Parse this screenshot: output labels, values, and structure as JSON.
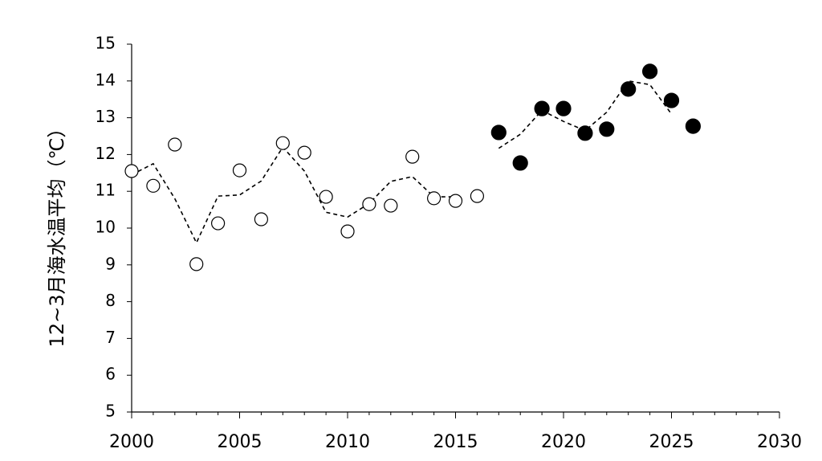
{
  "chart_data": {
    "type": "scatter",
    "y_label": "12~3月海水温平均（℃）",
    "xlim": [
      2000,
      2030
    ],
    "xticks": [
      2000,
      2005,
      2010,
      2015,
      2020,
      2025,
      2030
    ],
    "ylim": [
      5,
      15
    ],
    "yticks": [
      5,
      6,
      7,
      8,
      9,
      10,
      11,
      12,
      13,
      14,
      15
    ],
    "series": [
      {
        "kind": "marker",
        "marker": "open",
        "color": "#000000",
        "x": [
          2000,
          2001,
          2002,
          2003,
          2004,
          2005,
          2006,
          2007,
          2008,
          2009,
          2010,
          2011,
          2012,
          2013,
          2014,
          2015,
          2016
        ],
        "values": [
          11.55,
          11.15,
          12.27,
          9.02,
          10.13,
          11.57,
          10.24,
          12.31,
          12.05,
          10.85,
          9.91,
          10.65,
          10.61,
          11.94,
          10.81,
          10.74,
          10.87
        ]
      },
      {
        "kind": "marker",
        "marker": "filled",
        "color": "#000000",
        "x": [
          2017,
          2018,
          2019,
          2020,
          2021,
          2022,
          2023,
          2024,
          2025,
          2026
        ],
        "values": [
          12.6,
          11.77,
          13.25,
          13.25,
          12.58,
          12.69,
          13.78,
          14.26,
          13.47,
          12.77
        ]
      },
      {
        "kind": "line",
        "dash": true,
        "color": "#000000",
        "x": [
          2000,
          2001,
          2002,
          2003,
          2004,
          2005,
          2006,
          2007,
          2008,
          2009,
          2010,
          2011,
          2012,
          2013,
          2014,
          2015,
          2016,
          2017,
          2018,
          2019,
          2020,
          2021,
          2022,
          2023,
          2024,
          2025
        ],
        "values": [
          11.45,
          11.75,
          10.8,
          9.6,
          10.87,
          10.9,
          11.28,
          12.2,
          11.55,
          10.43,
          10.3,
          10.67,
          11.27,
          11.4,
          10.85,
          10.85,
          null,
          12.17,
          12.55,
          13.2,
          12.9,
          12.65,
          13.15,
          14.0,
          13.9,
          13.1
        ]
      }
    ]
  }
}
